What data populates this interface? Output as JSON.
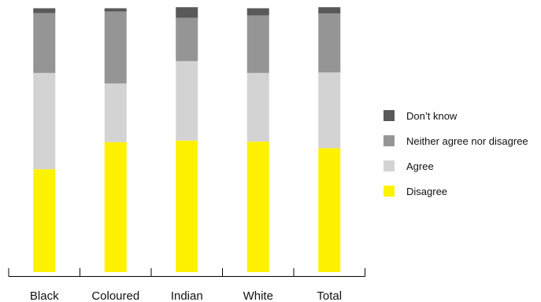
{
  "chart_data": {
    "type": "bar",
    "stacked": true,
    "percent_stacked": true,
    "title": "",
    "xlabel": "",
    "ylabel": "",
    "ylim": [
      0,
      100
    ],
    "grid": false,
    "legend_position": "right",
    "categories": [
      "Black",
      "Coloured",
      "Indian",
      "White",
      "Total"
    ],
    "series": [
      {
        "name": "Disagree",
        "color": "#fff200",
        "values": [
          39.1,
          49.4,
          50.0,
          49.6,
          47.1
        ]
      },
      {
        "name": "Agree",
        "color": "#d3d3d3",
        "values": [
          36.6,
          22.3,
          30.2,
          26.1,
          28.8
        ]
      },
      {
        "name": "Neither agree nor disagree",
        "color": "#959595",
        "values": [
          22.8,
          27.4,
          16.5,
          21.9,
          22.4
        ]
      },
      {
        "name": "Don’t know",
        "color": "#595959",
        "values": [
          1.8,
          1.2,
          4.0,
          2.7,
          2.4
        ]
      }
    ],
    "legend_order": [
      "Don’t know",
      "Neither agree nor disagree",
      "Agree",
      "Disagree"
    ]
  }
}
